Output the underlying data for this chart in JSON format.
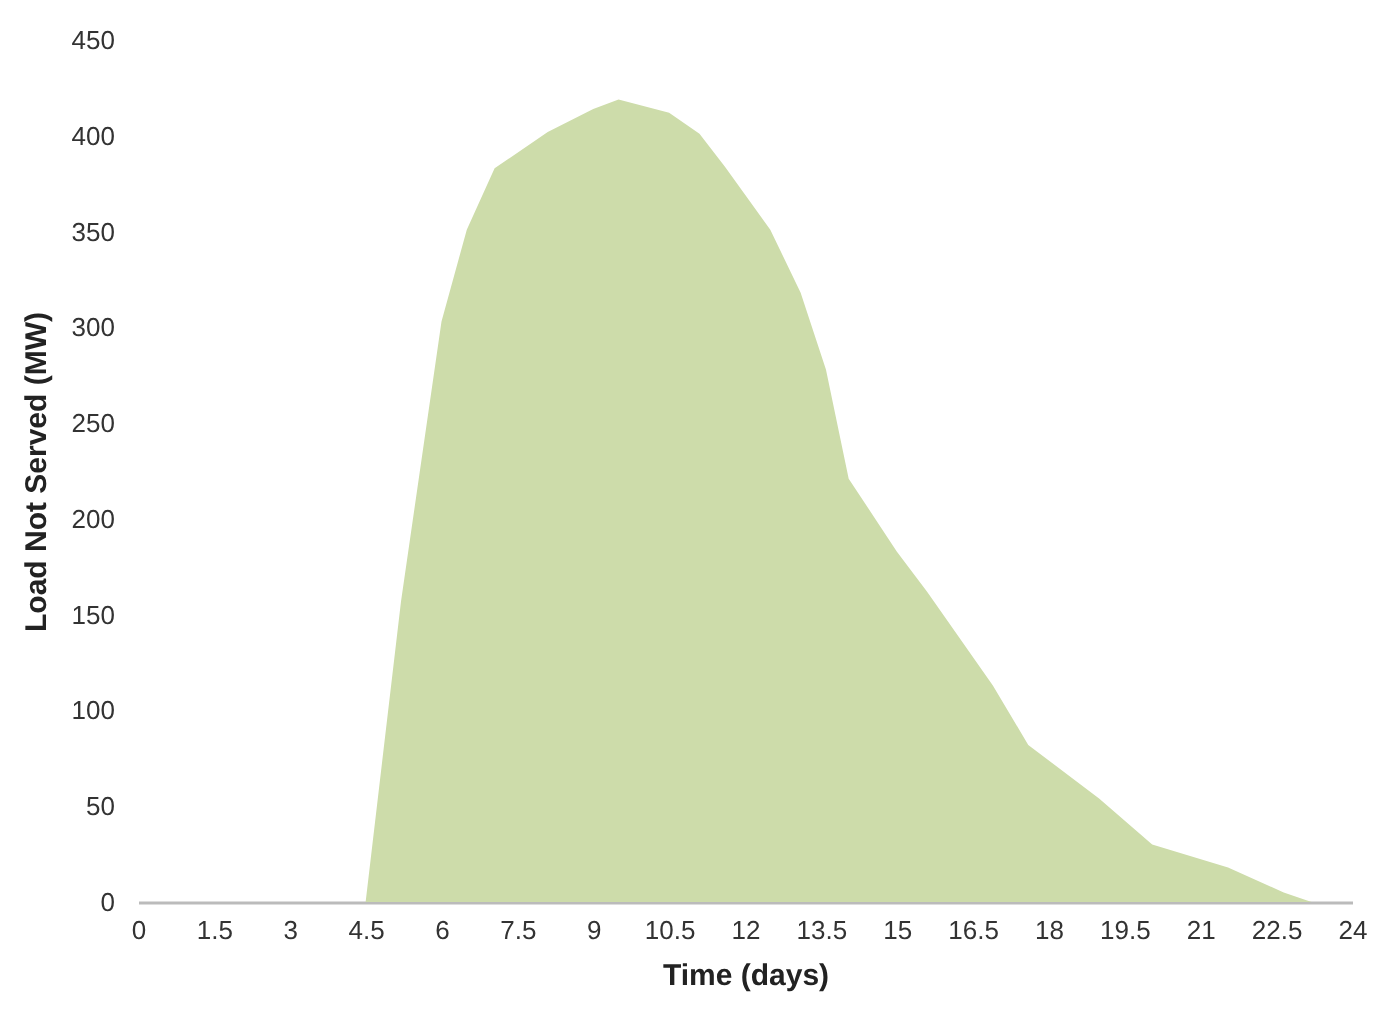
{
  "chart_data": {
    "type": "area",
    "xlabel": "Time (days)",
    "ylabel": "Load Not Served (MW)",
    "x": [
      0,
      4.5,
      5.2,
      6,
      6.5,
      7.05,
      8.1,
      9,
      9.5,
      10.5,
      11.1,
      11.6,
      12.5,
      13.1,
      13.6,
      14.05,
      15,
      15.6,
      16.9,
      17.6,
      19,
      20.05,
      21.55,
      22.65,
      23.2,
      24
    ],
    "series": [
      {
        "color": "#cddcaa",
        "values": [
          0,
          0,
          157,
          303,
          351,
          383,
          402,
          414,
          419,
          412,
          401,
          384,
          351,
          318,
          278,
          221,
          183,
          162,
          113,
          82,
          54,
          30,
          18,
          5,
          0,
          0
        ]
      }
    ],
    "xlim": [
      0,
      24
    ],
    "xticks": [
      0,
      1.5,
      3,
      4.5,
      6,
      7.5,
      9,
      10.5,
      12,
      13.5,
      15,
      16.5,
      18,
      19.5,
      21,
      22.5,
      24
    ],
    "ylim": [
      0,
      450
    ],
    "yticks": [
      0,
      50,
      100,
      150,
      200,
      250,
      300,
      350,
      400,
      450
    ],
    "grid": false
  }
}
